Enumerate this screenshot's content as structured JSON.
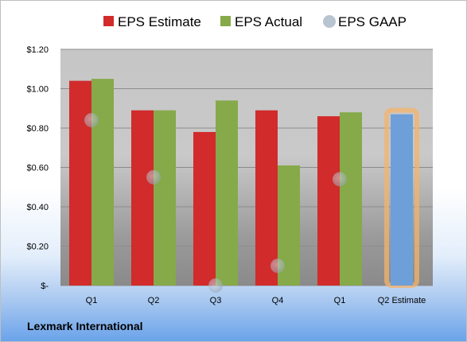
{
  "chart_data": {
    "type": "bar",
    "categories": [
      "Q1",
      "Q2",
      "Q3",
      "Q4",
      "Q1",
      "Q2 Estimate"
    ],
    "series": [
      {
        "name": "EPS Estimate",
        "color": "#d12b2b",
        "values": [
          1.04,
          0.89,
          0.78,
          0.89,
          0.86,
          null
        ]
      },
      {
        "name": "EPS Actual",
        "color": "#86a94a",
        "values": [
          1.05,
          0.89,
          0.94,
          0.61,
          0.88,
          0.87
        ]
      },
      {
        "name": "EPS GAAP",
        "color": "#b8c4d0",
        "values": [
          0.84,
          0.55,
          0.0,
          0.1,
          0.54,
          null
        ]
      }
    ],
    "highlight": {
      "category": "Q2 Estimate",
      "color": "#6f9fd8",
      "glow": "#f5b36b"
    },
    "ylim": [
      0,
      1.2
    ],
    "yticks": [
      0,
      0.2,
      0.4,
      0.6,
      0.8,
      1.0,
      1.2
    ],
    "ytick_labels": [
      "$-",
      "$0.20",
      "$0.40",
      "$0.60",
      "$0.80",
      "$1.00",
      "$1.20"
    ],
    "legend_position": "top",
    "grid": true
  },
  "footer": {
    "company": "Lexmark International"
  }
}
